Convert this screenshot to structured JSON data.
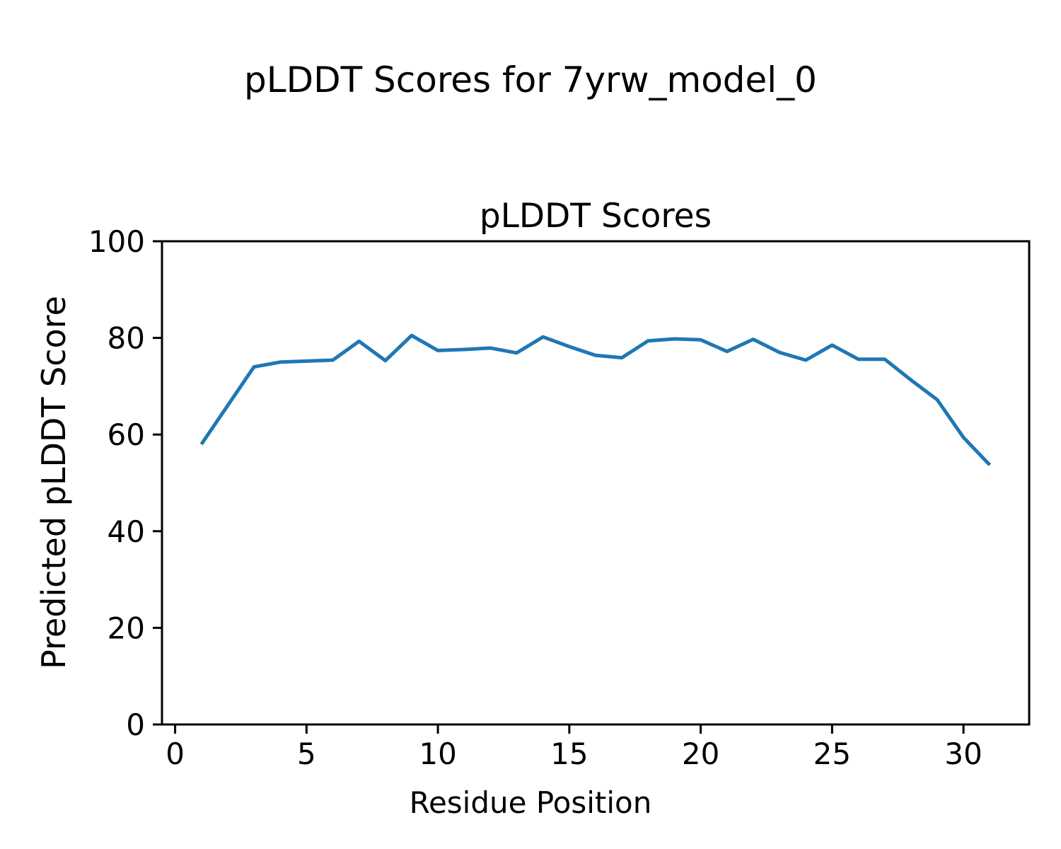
{
  "figure": {
    "suptitle": "pLDDT Scores for 7yrw_model_0",
    "background_color": "#ffffff",
    "text_color": "#000000"
  },
  "chart_data": {
    "type": "line",
    "title": "pLDDT Scores",
    "xlabel": "Residue Position",
    "ylabel": "Predicted pLDDT Score",
    "xlim": [
      -0.5,
      32.5
    ],
    "ylim": [
      0,
      100
    ],
    "xticks": [
      0,
      5,
      10,
      15,
      20,
      25,
      30
    ],
    "yticks": [
      0,
      20,
      40,
      60,
      80,
      100
    ],
    "grid": false,
    "legend_position": "none",
    "axes_box": true,
    "series": [
      {
        "name": "pLDDT",
        "color": "#1f77b4",
        "x": [
          1,
          2,
          3,
          4,
          5,
          6,
          7,
          8,
          9,
          10,
          11,
          12,
          13,
          14,
          15,
          16,
          17,
          18,
          19,
          20,
          21,
          22,
          23,
          24,
          25,
          26,
          27,
          28,
          29,
          30,
          31
        ],
        "y": [
          58.0,
          66.0,
          74.0,
          75.0,
          75.2,
          75.4,
          79.3,
          75.3,
          80.5,
          77.4,
          77.6,
          77.9,
          76.9,
          80.2,
          78.2,
          76.4,
          75.9,
          79.4,
          79.8,
          79.6,
          77.2,
          79.7,
          77.0,
          75.4,
          78.5,
          75.6,
          75.6,
          71.3,
          67.2,
          59.4,
          53.7
        ]
      }
    ]
  }
}
